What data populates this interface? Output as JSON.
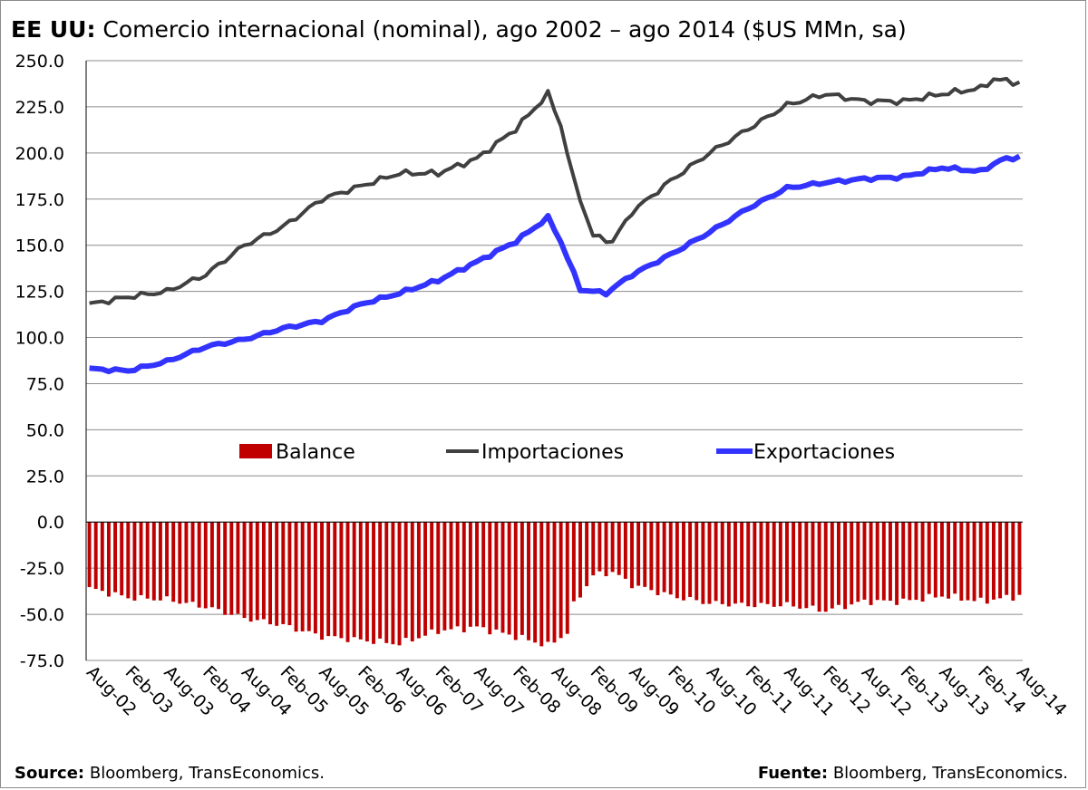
{
  "title": {
    "bold": "EE UU:",
    "rest": "Comercio internacional (nominal), ago 2002 – ago 2014 ($US MMn, sa)"
  },
  "footer": {
    "left_bold": "Source:",
    "left_text": "Bloomberg, TransEconomics.",
    "right_bold": "Fuente:",
    "right_text": "Bloomberg, TransEconomics."
  },
  "chart_data": {
    "type": "line",
    "title": "EE UU: Comercio internacional (nominal), ago 2002 – ago 2014 ($US MMn, sa)",
    "xlabel": "",
    "ylabel": "",
    "ylim": [
      -75,
      250
    ],
    "yticks": [
      "250.0",
      "225.0",
      "200.0",
      "175.0",
      "150.0",
      "125.0",
      "100.0",
      "75.0",
      "50.0",
      "25.0",
      "0.0",
      "-25.0",
      "-50.0",
      "-75.0"
    ],
    "x_tick_labels": [
      "Aug-02",
      "Feb-03",
      "Aug-03",
      "Feb-04",
      "Aug-04",
      "Feb-05",
      "Aug-05",
      "Feb-06",
      "Aug-06",
      "Feb-07",
      "Aug-07",
      "Feb-08",
      "Aug-08",
      "Feb-09",
      "Aug-09",
      "Feb-10",
      "Aug-10",
      "Feb-11",
      "Aug-11",
      "Feb-12",
      "Aug-12",
      "Feb-13",
      "Aug-13",
      "Feb-14",
      "Aug-14"
    ],
    "period": "Aug-02 to Aug-14, monthly",
    "grid": true,
    "legend_position": "middle",
    "colors": {
      "balance": "#c00000",
      "imports": "#404040",
      "exports": "#3333ff"
    },
    "anchors": {
      "imports": [
        [
          "Aug-02",
          118
        ],
        [
          "Feb-03",
          122
        ],
        [
          "Aug-03",
          125
        ],
        [
          "Feb-04",
          134
        ],
        [
          "Aug-04",
          150
        ],
        [
          "Feb-05",
          160
        ],
        [
          "Aug-05",
          175
        ],
        [
          "Feb-06",
          182
        ],
        [
          "Aug-06",
          189
        ],
        [
          "Feb-07",
          189
        ],
        [
          "Aug-07",
          197
        ],
        [
          "Feb-08",
          213
        ],
        [
          "Jul-08",
          232
        ],
        [
          "Sep-08",
          215
        ],
        [
          "Nov-08",
          185
        ],
        [
          "Feb-09",
          155
        ],
        [
          "May-09",
          152
        ],
        [
          "Aug-09",
          168
        ],
        [
          "Feb-10",
          185
        ],
        [
          "Aug-10",
          200
        ],
        [
          "Feb-11",
          213
        ],
        [
          "Aug-11",
          226
        ],
        [
          "Feb-12",
          232
        ],
        [
          "Aug-12",
          228
        ],
        [
          "Feb-13",
          228
        ],
        [
          "Aug-13",
          232
        ],
        [
          "Feb-14",
          235
        ],
        [
          "Apr-14",
          240
        ],
        [
          "Aug-14",
          238
        ]
      ],
      "exports": [
        [
          "Aug-02",
          83
        ],
        [
          "Feb-03",
          82
        ],
        [
          "Aug-03",
          87
        ],
        [
          "Feb-04",
          95
        ],
        [
          "Aug-04",
          99
        ],
        [
          "Feb-05",
          105
        ],
        [
          "Aug-05",
          109
        ],
        [
          "Feb-06",
          118
        ],
        [
          "Aug-06",
          124
        ],
        [
          "Feb-07",
          131
        ],
        [
          "Aug-07",
          141
        ],
        [
          "Feb-08",
          152
        ],
        [
          "Jul-08",
          165
        ],
        [
          "Sep-08",
          152
        ],
        [
          "Dec-08",
          126
        ],
        [
          "Apr-09",
          124
        ],
        [
          "Aug-09",
          134
        ],
        [
          "Feb-10",
          145
        ],
        [
          "Aug-10",
          157
        ],
        [
          "Feb-11",
          170
        ],
        [
          "Aug-11",
          181
        ],
        [
          "Feb-12",
          184
        ],
        [
          "Aug-12",
          186
        ],
        [
          "Feb-13",
          187
        ],
        [
          "Aug-13",
          192
        ],
        [
          "Feb-14",
          190
        ],
        [
          "May-14",
          196
        ],
        [
          "Aug-14",
          198
        ]
      ],
      "balance": [
        [
          "Aug-02",
          -36
        ],
        [
          "Feb-03",
          -41
        ],
        [
          "Aug-03",
          -42
        ],
        [
          "Feb-04",
          -46
        ],
        [
          "Aug-04",
          -52
        ],
        [
          "Feb-05",
          -56
        ],
        [
          "Aug-05",
          -62
        ],
        [
          "Feb-06",
          -64
        ],
        [
          "Aug-06",
          -66
        ],
        [
          "Feb-07",
          -59
        ],
        [
          "Aug-07",
          -57
        ],
        [
          "Feb-08",
          -62
        ],
        [
          "Jul-08",
          -67
        ],
        [
          "Oct-08",
          -60
        ],
        [
          "Nov-08",
          -45
        ],
        [
          "Feb-09",
          -29
        ],
        [
          "May-09",
          -27
        ],
        [
          "Aug-09",
          -34
        ],
        [
          "Feb-10",
          -40
        ],
        [
          "Aug-10",
          -44
        ],
        [
          "Feb-11",
          -45
        ],
        [
          "Aug-11",
          -45
        ],
        [
          "Feb-12",
          -48
        ],
        [
          "Aug-12",
          -43
        ],
        [
          "Feb-13",
          -43
        ],
        [
          "Aug-13",
          -40
        ],
        [
          "Feb-14",
          -43
        ],
        [
          "Aug-14",
          -40
        ]
      ]
    },
    "legend": [
      "Balance",
      "Importaciones",
      "Exportaciones"
    ]
  }
}
